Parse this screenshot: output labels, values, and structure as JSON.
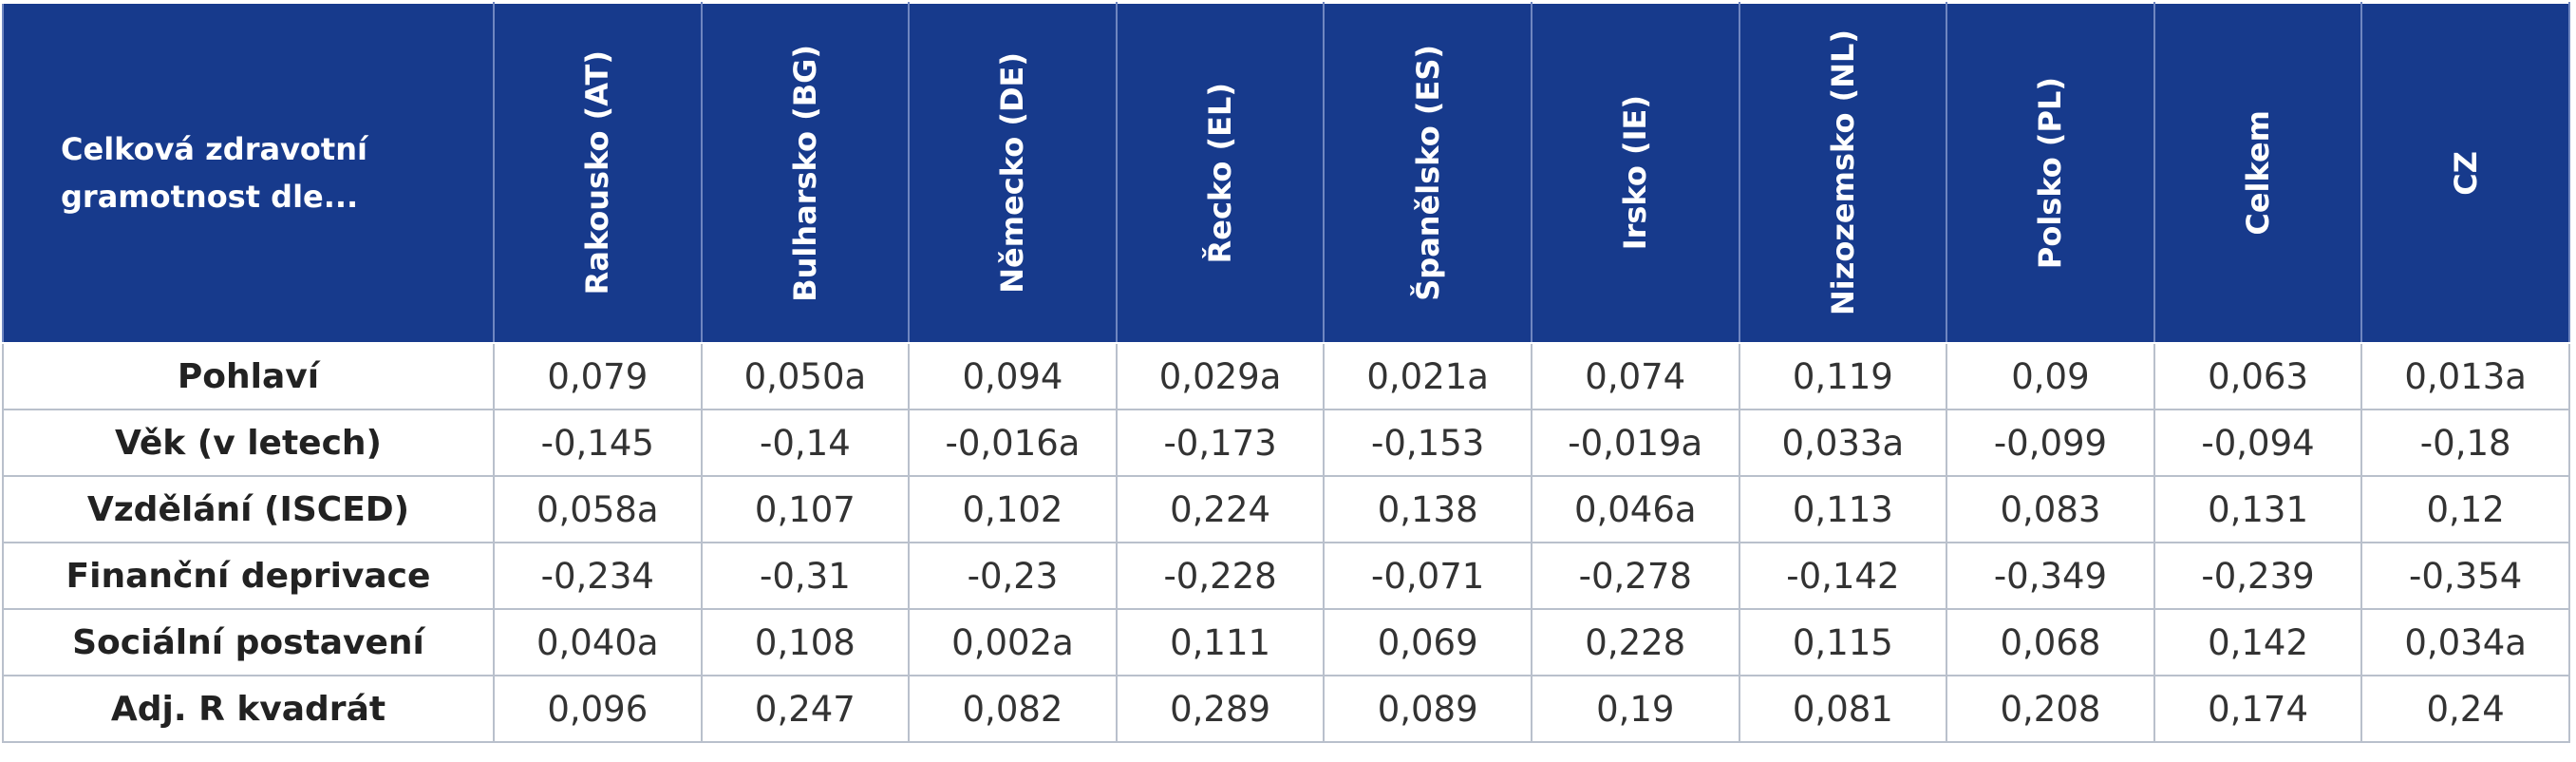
{
  "table": {
    "corner": "Celková zdravotní gramotnost dle...",
    "columns": [
      "Rakousko (AT)",
      "Bulharsko (BG)",
      "Německo (DE)",
      "Řecko (EL)",
      "Španělsko (ES)",
      "Irsko (IE)",
      "Nizozemsko (NL)",
      "Polsko (PL)",
      "Celkem",
      "CZ"
    ],
    "rows": [
      {
        "label": "Pohlaví",
        "values": [
          "0,079",
          "0,050a",
          "0,094",
          "0,029a",
          "0,021a",
          "0,074",
          "0,119",
          "0,09",
          "0,063",
          "0,013a"
        ]
      },
      {
        "label": "Věk (v letech)",
        "values": [
          "-0,145",
          "-0,14",
          "-0,016a",
          "-0,173",
          "-0,153",
          "-0,019a",
          "0,033a",
          "-0,099",
          "-0,094",
          "-0,18"
        ]
      },
      {
        "label": "Vzdělání (ISCED)",
        "values": [
          "0,058a",
          "0,107",
          "0,102",
          "0,224",
          "0,138",
          "0,046a",
          "0,113",
          "0,083",
          "0,131",
          "0,12"
        ]
      },
      {
        "label": "Finanční deprivace",
        "values": [
          "-0,234",
          "-0,31",
          "-0,23",
          "-0,228",
          "-0,071",
          "-0,278",
          "-0,142",
          "-0,349",
          "-0,239",
          "-0,354"
        ]
      },
      {
        "label": "Sociální postavení",
        "values": [
          "0,040a",
          "0,108",
          "0,002a",
          "0,111",
          "0,069",
          "0,228",
          "0,115",
          "0,068",
          "0,142",
          "0,034a"
        ]
      },
      {
        "label": "Adj. R kvadrát",
        "values": [
          "0,096",
          "0,247",
          "0,082",
          "0,289",
          "0,089",
          "0,19",
          "0,081",
          "0,208",
          "0,174",
          "0,24"
        ]
      }
    ]
  }
}
